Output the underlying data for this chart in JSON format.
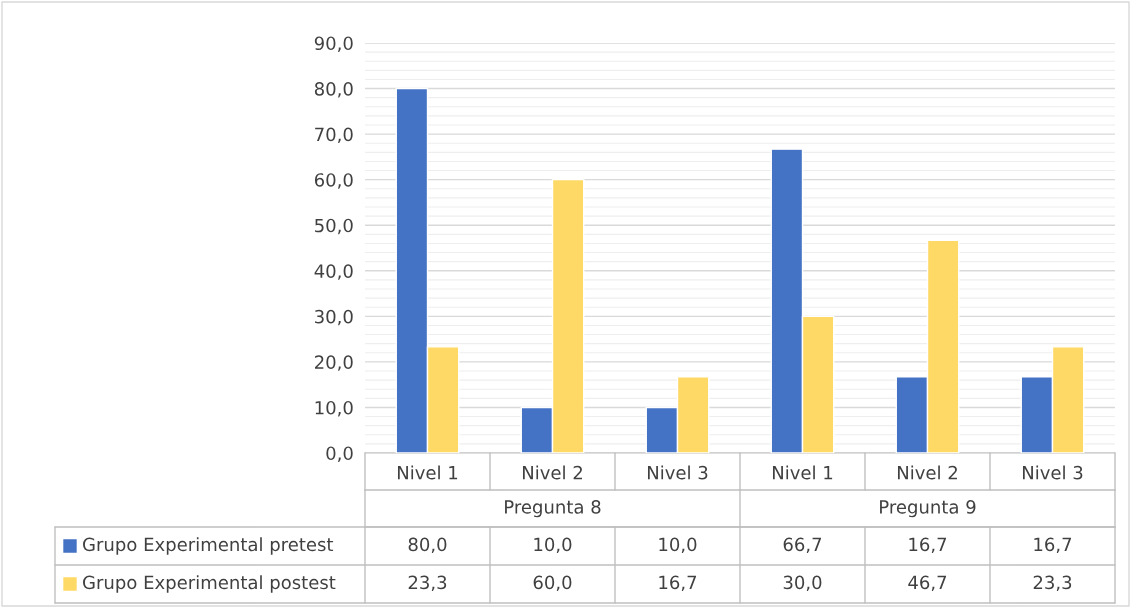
{
  "chart_data": {
    "type": "bar",
    "categories": [
      "Nivel 1",
      "Nivel 2",
      "Nivel 3",
      "Nivel 1",
      "Nivel 2",
      "Nivel 3"
    ],
    "annotations": [
      "Pregunta 8",
      "Pregunta 9"
    ],
    "series": [
      {
        "name": "Grupo Experimental pretest",
        "color": "#4472c4",
        "values": [
          80.0,
          10.0,
          10.0,
          66.7,
          16.7,
          16.7
        ],
        "value_labels": [
          "80,0",
          "10,0",
          "10,0",
          "66,7",
          "16,7",
          "16,7"
        ]
      },
      {
        "name": "Grupo Experimental postest",
        "color": "#ffd966",
        "values": [
          23.3,
          60.0,
          16.7,
          30.0,
          46.7,
          23.3
        ],
        "value_labels": [
          "23,3",
          "60,0",
          "16,7",
          "30,0",
          "46,7",
          "23,3"
        ]
      }
    ],
    "ylim": [
      0,
      90
    ],
    "yticks": [
      {
        "value": 0,
        "label": "0,0"
      },
      {
        "value": 10,
        "label": "10,0"
      },
      {
        "value": 20,
        "label": "20,0"
      },
      {
        "value": 30,
        "label": "30,0"
      },
      {
        "value": 40,
        "label": "40,0"
      },
      {
        "value": 50,
        "label": "50,0"
      },
      {
        "value": 60,
        "label": "60,0"
      },
      {
        "value": 70,
        "label": "70,0"
      },
      {
        "value": 80,
        "label": "80,0"
      },
      {
        "value": 90,
        "label": "90,0"
      }
    ],
    "grid": "y",
    "legend": "bottom"
  }
}
